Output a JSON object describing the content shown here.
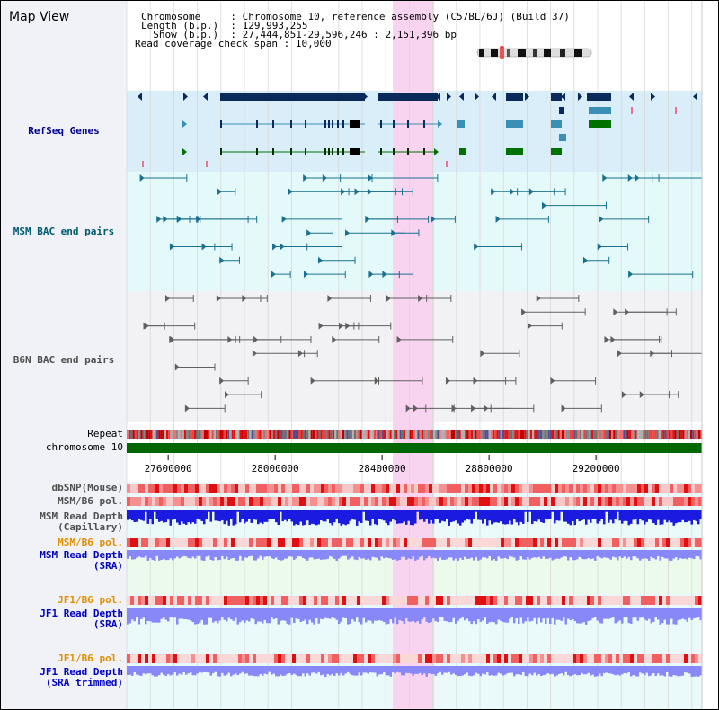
{
  "view_title": "Map View",
  "header": {
    "chromosome": {
      "key": "Chromosome     ",
      "value": "Chromosome 10, reference assembly (C57BL/6J) (Build 37)"
    },
    "length": {
      "key": "Length (b.p.)  ",
      "value": "129,993,255"
    },
    "show": {
      "key": "  Show (b.p.)  ",
      "value": "27,444,851-29,596,246 : 2,151,396 bp"
    },
    "coverage": {
      "key": "Read coverage check span",
      "value": "10,000"
    }
  },
  "tracks": {
    "refseq": {
      "label": "RefSeq Genes",
      "color": "#000080"
    },
    "msm_bac": {
      "label": "MSM BAC end pairs",
      "color": "#005870"
    },
    "b6n_bac": {
      "label": "B6N BAC end pairs",
      "color": "#505050"
    },
    "repeat": {
      "label": "Repeat"
    },
    "chromosome": {
      "label": "chromosome 10"
    },
    "dbsnp": {
      "label": "dbSNP(Mouse)"
    },
    "msm_b6_pol_1": {
      "label": "MSM/B6 pol."
    },
    "msm_depth_cap": {
      "label": "MSM Read Depth\n(Capillary)"
    },
    "msm_b6_pol_2": {
      "label": "MSM/B6 pol."
    },
    "msm_depth_sra": {
      "label": "MSM Read Depth\n(SRA)"
    },
    "jf1_b6_pol_1": {
      "label": "JF1/B6 pol."
    },
    "jf1_depth_sra": {
      "label": "JF1 Read Depth\n(SRA)"
    },
    "jf1_b6_pol_2": {
      "label": "JF1/B6 pol."
    },
    "jf1_depth_trim": {
      "label": "JF1 Read Depth\n(SRA trimmed)"
    }
  },
  "axis": {
    "start_bp": 27444851,
    "end_bp": 29596246,
    "ticks": [
      27600000,
      28000000,
      28400000,
      28800000,
      29200000
    ],
    "tick_labels": [
      "27600000",
      "28000000",
      "28400000",
      "28800000",
      "29200000"
    ]
  },
  "highlight": {
    "start_bp": 28440000,
    "end_bp": 28595000
  },
  "colors": {
    "refseq_bg": "#daeefa",
    "msm_bg": "#e4fafa",
    "b6n_bg": "#f2f2f4",
    "lower_bg": "#eafafa",
    "highlight": "#f8d4f0",
    "chrom_bar": "#006600",
    "depth_cap": "#1a1ae0",
    "depth_sra": "#8888f8",
    "pol": "#f07070",
    "orange_label": "#e09000",
    "blue_label": "#0000c0"
  }
}
